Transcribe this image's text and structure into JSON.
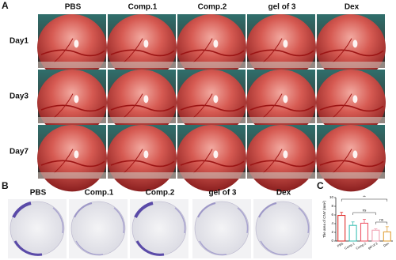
{
  "panel_a": {
    "label": "A",
    "columns": [
      "PBS",
      "Comp.1",
      "Comp.2",
      "gel of 3",
      "Dex"
    ],
    "rows": [
      "Day1",
      "Day3",
      "Day7"
    ]
  },
  "panel_b": {
    "label": "B",
    "columns": [
      "PBS",
      "Comp.1",
      "Comp.2",
      "gel of 3",
      "Dex"
    ]
  },
  "chart_data": {
    "type": "bar",
    "label": "C",
    "y_label": "The area of CNV (mm²)",
    "categories": [
      "PBS",
      "Comp.1",
      "Comp.2",
      "gel of 3",
      "Dex"
    ],
    "values": [
      5.9,
      3.6,
      4.1,
      2.5,
      2.1
    ],
    "errors": [
      0.7,
      0.8,
      0.9,
      0.3,
      1.2
    ],
    "colors": [
      "#e0302c",
      "#3fc1b5",
      "#ef5a6a",
      "#f2a2b3",
      "#e2a23c"
    ],
    "ylim": [
      0,
      10
    ],
    "yticks": [
      0,
      2,
      4,
      6,
      8,
      10
    ],
    "annotations": [
      "**",
      "ns",
      "ns"
    ]
  }
}
